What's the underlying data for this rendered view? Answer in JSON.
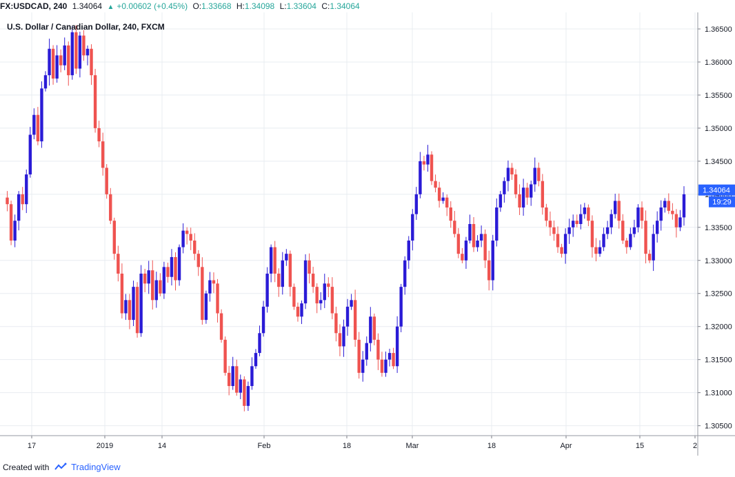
{
  "header": {
    "symbol": "FX:USDCAD, 240",
    "last": "1.34064",
    "change": "+0.00602 (+0.45%)",
    "open_label": "O:",
    "open": "1.33668",
    "high_label": "H:",
    "high": "1.34098",
    "low_label": "L:",
    "low": "1.33604",
    "close_label": "C:",
    "close": "1.34064"
  },
  "chart_title": "U.S. Dollar / Canadian Dollar, 240, FXCM",
  "footer": {
    "created_with": "Created with",
    "brand": "TradingView"
  },
  "colors": {
    "up": "#2a1bd6",
    "down": "#ef5350",
    "price_badge": "#2962ff",
    "grid": "#e8ecf1"
  },
  "chart_data": {
    "type": "candlestick",
    "title": "U.S. Dollar / Canadian Dollar, 240, FXCM",
    "ylim": [
      1.3035,
      1.3675
    ],
    "y_ticks": [
      "1.30500",
      "1.31000",
      "1.31500",
      "1.32000",
      "1.32500",
      "1.33000",
      "1.33500",
      "1.34000",
      "1.34500",
      "1.35000",
      "1.35500",
      "1.36000",
      "1.36500"
    ],
    "x_ticks": [
      "17",
      "2019",
      "14",
      "Feb",
      "18",
      "Mar",
      "18",
      "Apr",
      "15",
      "2"
    ],
    "last_price_label": "1.34064",
    "countdown_label": "19:29",
    "grid": true,
    "path": [
      1.3395,
      1.3385,
      1.333,
      1.336,
      1.34,
      1.3385,
      1.343,
      1.349,
      1.352,
      1.348,
      1.356,
      1.358,
      1.362,
      1.3575,
      1.361,
      1.3595,
      1.3625,
      1.358,
      1.3645,
      1.359,
      1.364,
      1.361,
      1.362,
      1.358,
      1.35,
      1.348,
      1.344,
      1.34,
      1.336,
      1.331,
      1.328,
      1.322,
      1.324,
      1.321,
      1.326,
      1.319,
      1.328,
      1.3265,
      1.3285,
      1.324,
      1.327,
      1.325,
      1.329,
      1.3275,
      1.3305,
      1.327,
      1.332,
      1.3345,
      1.334,
      1.333,
      1.331,
      1.329,
      1.321,
      1.325,
      1.327,
      1.3265,
      1.322,
      1.318,
      1.313,
      1.311,
      1.314,
      1.31,
      1.312,
      1.308,
      1.311,
      1.314,
      1.316,
      1.319,
      1.323,
      1.328,
      1.332,
      1.328,
      1.326,
      1.33,
      1.331,
      1.326,
      1.323,
      1.3215,
      1.3235,
      1.33,
      1.328,
      1.326,
      1.3235,
      1.324,
      1.3265,
      1.326,
      1.322,
      1.319,
      1.317,
      1.32,
      1.323,
      1.324,
      1.318,
      1.313,
      1.315,
      1.3175,
      1.3215,
      1.318,
      1.315,
      1.313,
      1.315,
      1.316,
      1.314,
      1.32,
      1.326,
      1.33,
      1.333,
      1.337,
      1.34,
      1.345,
      1.3445,
      1.346,
      1.342,
      1.341,
      1.339,
      1.3395,
      1.338,
      1.336,
      1.334,
      1.331,
      1.33,
      1.333,
      1.3355,
      1.332,
      1.333,
      1.334,
      1.33,
      1.327,
      1.333,
      1.338,
      1.34,
      1.342,
      1.344,
      1.343,
      1.34,
      1.338,
      1.341,
      1.3395,
      1.3415,
      1.344,
      1.342,
      1.338,
      1.336,
      1.335,
      1.334,
      1.332,
      1.331,
      1.334,
      1.335,
      1.336,
      1.3355,
      1.337,
      1.338,
      1.336,
      1.332,
      1.331,
      1.332,
      1.334,
      1.335,
      1.337,
      1.339,
      1.336,
      1.333,
      1.332,
      1.334,
      1.335,
      1.338,
      1.336,
      1.331,
      1.33,
      1.334,
      1.336,
      1.338,
      1.339,
      1.3375,
      1.337,
      1.335,
      1.3365,
      1.34
    ]
  }
}
